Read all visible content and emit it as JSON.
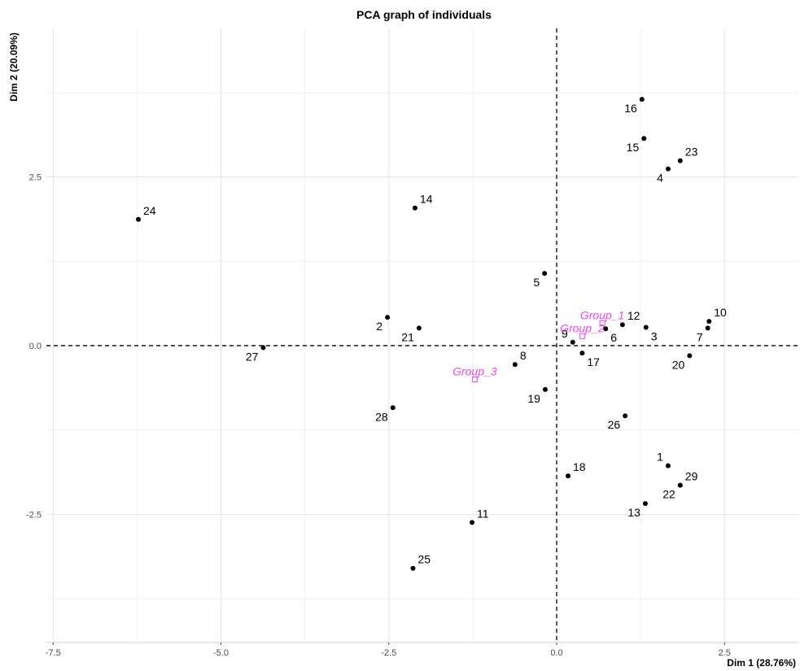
{
  "chart_data": {
    "type": "scatter",
    "title": "PCA graph of individuals",
    "xlabel": "Dim 1 (28.76%)",
    "ylabel": "Dim 2 (20.09%)",
    "xlim": [
      -7.6,
      3.6
    ],
    "ylim": [
      -4.4,
      4.7
    ],
    "x_ticks": [
      -7.5,
      -5.0,
      -2.5,
      0.0,
      2.5
    ],
    "x_tick_labels": [
      "-7.5",
      "-5.0",
      "-2.5",
      "0.0",
      "2.5"
    ],
    "y_ticks": [
      -2.5,
      0.0,
      2.5
    ],
    "y_tick_labels": [
      "-2.5",
      "0.0",
      "2.5"
    ],
    "grid": true,
    "reference_lines": {
      "x": 0,
      "y": 0
    },
    "point_color": "#000000",
    "group_color": "#ee44ee",
    "individuals": [
      {
        "label": "1",
        "x": 1.66,
        "y": -1.78,
        "pos": "tl"
      },
      {
        "label": "2",
        "x": -2.52,
        "y": 0.42,
        "pos": "bl"
      },
      {
        "label": "3",
        "x": 1.33,
        "y": 0.27,
        "pos": "br"
      },
      {
        "label": "4",
        "x": 1.66,
        "y": 2.62,
        "pos": "bl"
      },
      {
        "label": "5",
        "x": -0.18,
        "y": 1.07,
        "pos": "bl"
      },
      {
        "label": "6",
        "x": 0.73,
        "y": 0.25,
        "pos": "br"
      },
      {
        "label": "7",
        "x": 2.25,
        "y": 0.26,
        "pos": "bl"
      },
      {
        "label": "8",
        "x": -0.62,
        "y": -0.28,
        "pos": "tr"
      },
      {
        "label": "9",
        "x": 0.24,
        "y": 0.05,
        "pos": "tl"
      },
      {
        "label": "10",
        "x": 2.27,
        "y": 0.36,
        "pos": "tr"
      },
      {
        "label": "11",
        "x": -1.26,
        "y": -2.62,
        "pos": "tr"
      },
      {
        "label": "12",
        "x": 0.98,
        "y": 0.31,
        "pos": "tr"
      },
      {
        "label": "13",
        "x": 1.32,
        "y": -2.34,
        "pos": "bl"
      },
      {
        "label": "14",
        "x": -2.11,
        "y": 2.04,
        "pos": "tr"
      },
      {
        "label": "15",
        "x": 1.3,
        "y": 3.07,
        "pos": "bl"
      },
      {
        "label": "16",
        "x": 1.27,
        "y": 3.65,
        "pos": "bl"
      },
      {
        "label": "17",
        "x": 0.38,
        "y": -0.11,
        "pos": "br"
      },
      {
        "label": "18",
        "x": 0.17,
        "y": -1.93,
        "pos": "tr"
      },
      {
        "label": "19",
        "x": -0.17,
        "y": -0.65,
        "pos": "bl"
      },
      {
        "label": "20",
        "x": 1.98,
        "y": -0.15,
        "pos": "bl"
      },
      {
        "label": "21",
        "x": -2.05,
        "y": 0.26,
        "pos": "bl"
      },
      {
        "label": "22",
        "x": 1.84,
        "y": -2.07,
        "pos": "bl"
      },
      {
        "label": "23",
        "x": 1.84,
        "y": 2.74,
        "pos": "tr"
      },
      {
        "label": "24",
        "x": -6.23,
        "y": 1.87,
        "pos": "tr"
      },
      {
        "label": "25",
        "x": -2.14,
        "y": -3.3,
        "pos": "tr"
      },
      {
        "label": "26",
        "x": 1.02,
        "y": -1.04,
        "pos": "bl"
      },
      {
        "label": "27",
        "x": -4.37,
        "y": -0.03,
        "pos": "bl"
      },
      {
        "label": "28",
        "x": -2.44,
        "y": -0.92,
        "pos": "bl"
      },
      {
        "label": "29",
        "x": 1.84,
        "y": -2.07,
        "pos": "tr"
      }
    ],
    "groups": [
      {
        "label": "Group_1",
        "x": 0.68,
        "y": 0.33
      },
      {
        "label": "Group_2",
        "x": 0.38,
        "y": 0.14
      },
      {
        "label": "Group_3",
        "x": -1.22,
        "y": -0.5
      }
    ]
  }
}
